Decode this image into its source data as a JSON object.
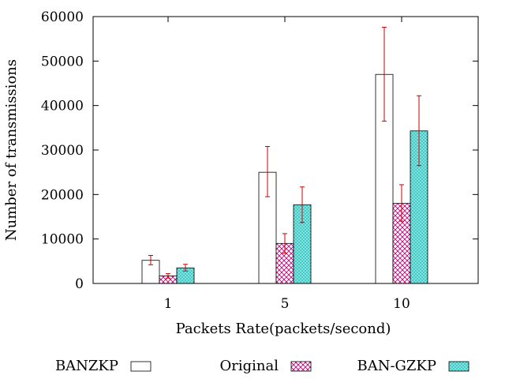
{
  "chart_data": {
    "type": "bar",
    "title": "",
    "xlabel": "Packets Rate(packets/second)",
    "ylabel": "Number of transmissions",
    "categories": [
      "1",
      "5",
      "10"
    ],
    "ylim": [
      0,
      60000
    ],
    "yticks": [
      0,
      10000,
      20000,
      30000,
      40000,
      50000,
      60000
    ],
    "grid": false,
    "legend_placement": "bottom",
    "error_bar_color": "#cc0000",
    "series": [
      {
        "name": "BANZKP",
        "values": [
          5200,
          25000,
          47000
        ],
        "error_low": [
          4200,
          19500,
          36500
        ],
        "error_high": [
          6300,
          30800,
          57600
        ],
        "fill": "none",
        "pattern": "none"
      },
      {
        "name": "Original",
        "values": [
          1700,
          9000,
          18000
        ],
        "error_low": [
          1200,
          6800,
          14000
        ],
        "error_high": [
          2200,
          11200,
          22200
        ],
        "fill": "#c0007a",
        "pattern": "crosshatch"
      },
      {
        "name": "BAN-GZKP",
        "values": [
          3500,
          17700,
          34300
        ],
        "error_low": [
          2800,
          13700,
          26500
        ],
        "error_high": [
          4300,
          21700,
          42200
        ],
        "fill": "#00a8a8",
        "pattern": "dots"
      }
    ]
  }
}
